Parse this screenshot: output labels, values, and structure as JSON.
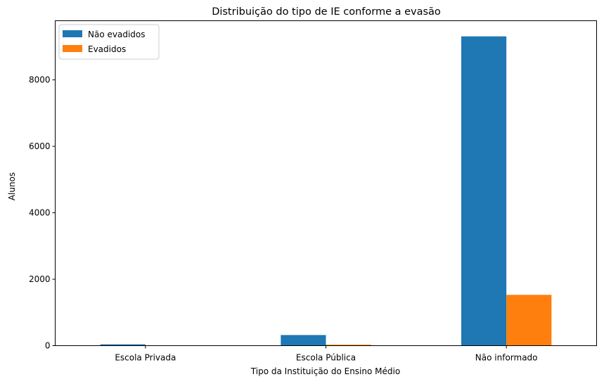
{
  "chart_data": {
    "type": "bar",
    "title": "Distribuição do tipo de IE conforme a evasão",
    "xlabel": "Tipo da Instituição do Ensino Médio",
    "ylabel": "Alunos",
    "categories": [
      "Escola Privada",
      "Escola Pública",
      "Não informado"
    ],
    "series": [
      {
        "name": "Não evadidos",
        "color": "#1f77b4",
        "values": [
          40,
          320,
          9310
        ]
      },
      {
        "name": "Evadidos",
        "color": "#ff7f0e",
        "values": [
          5,
          30,
          1530
        ]
      }
    ],
    "ylim": [
      0,
      9780
    ],
    "yticks": [
      0,
      2000,
      4000,
      6000,
      8000
    ],
    "grid": false,
    "legend_position": "top-left"
  }
}
